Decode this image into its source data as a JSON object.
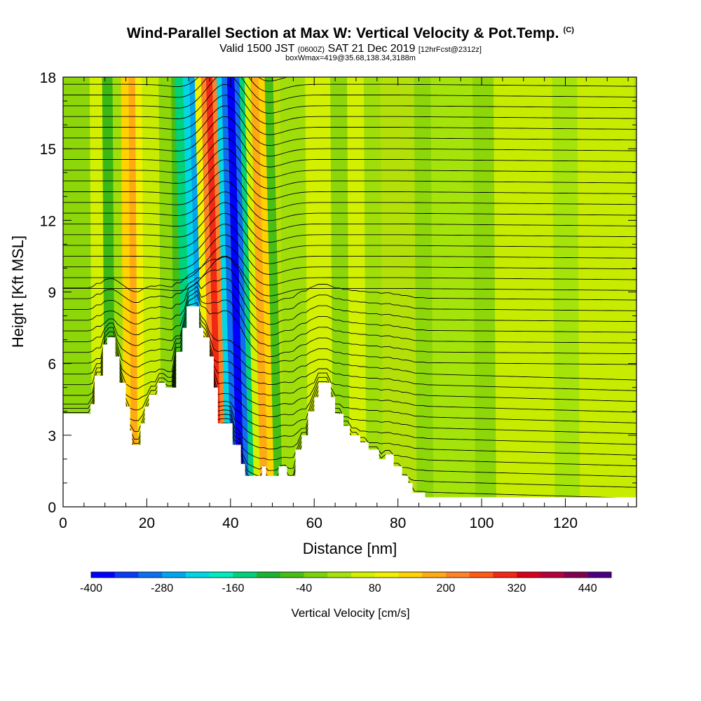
{
  "header": {
    "title": "Wind-Parallel Section at Max W: Vertical Velocity & Pot.Temp.",
    "copyright": "(C)",
    "valid_prefix": "Valid 1500 JST",
    "valid_utc": "(0600Z)",
    "valid_date": "SAT 21 Dec 2019",
    "forecast": "[12hrFcst@2312z]",
    "box_info": "boxWmax=419@35.68,138.34,3188m"
  },
  "chart_data": {
    "type": "heatmap",
    "title": "Wind-Parallel Section at Max W: Vertical Velocity & Pot.Temp.",
    "xlabel": "Distance [nm]",
    "ylabel": "Height [Kft MSL]",
    "xlim": [
      0,
      137
    ],
    "ylim": [
      0,
      18
    ],
    "x_ticks": [
      0,
      20,
      40,
      60,
      80,
      100,
      120
    ],
    "y_ticks": [
      0,
      3,
      6,
      9,
      12,
      15,
      18
    ],
    "colorbar": {
      "title": "Vertical Velocity [cm/s]",
      "range": [
        -400,
        480
      ],
      "tick_values": [
        -400,
        -280,
        -160,
        -40,
        80,
        200,
        320,
        440
      ],
      "tick_labels": [
        "-400",
        "-280",
        "-160",
        "-40",
        "80",
        "200",
        "320",
        "440"
      ],
      "colors": [
        "#0000ff",
        "#0a3cf5",
        "#0f6ef0",
        "#00a5f0",
        "#00d7e6",
        "#00ecc0",
        "#00d27a",
        "#19b430",
        "#46be14",
        "#7ad20a",
        "#a5e40a",
        "#d2f000",
        "#f0f000",
        "#ffd200",
        "#ffaa14",
        "#ff8228",
        "#ff5a14",
        "#f02814",
        "#d7001e",
        "#b4003c",
        "#820050",
        "#4b0082"
      ]
    },
    "terrain_kft": [
      [
        0,
        3.9
      ],
      [
        6.5,
        3.9
      ],
      [
        6.5,
        4.3
      ],
      [
        7.5,
        4.3
      ],
      [
        7.5,
        5.5
      ],
      [
        9.5,
        5.5
      ],
      [
        9.5,
        6.8
      ],
      [
        10.5,
        6.8
      ],
      [
        10.5,
        7.1
      ],
      [
        12.5,
        7.1
      ],
      [
        12.5,
        6.3
      ],
      [
        13.5,
        6.3
      ],
      [
        13.5,
        5.2
      ],
      [
        15,
        5.2
      ],
      [
        15,
        4.2
      ],
      [
        16,
        4.2
      ],
      [
        16,
        3.2
      ],
      [
        16.5,
        3.2
      ],
      [
        16.5,
        2.6
      ],
      [
        18.5,
        2.6
      ],
      [
        18.5,
        3.5
      ],
      [
        19.5,
        3.5
      ],
      [
        19.5,
        4.2
      ],
      [
        20.5,
        4.2
      ],
      [
        20.5,
        4.7
      ],
      [
        22.5,
        4.7
      ],
      [
        22.5,
        5.2
      ],
      [
        24.5,
        5.2
      ],
      [
        24.5,
        5.0
      ],
      [
        27,
        5.0
      ],
      [
        27,
        6.5
      ],
      [
        28.5,
        6.5
      ],
      [
        28.5,
        7.5
      ],
      [
        29.5,
        7.5
      ],
      [
        29.5,
        8.4
      ],
      [
        32.5,
        8.4
      ],
      [
        32.5,
        7.5
      ],
      [
        33.5,
        7.5
      ],
      [
        33.5,
        7.1
      ],
      [
        35,
        7.1
      ],
      [
        35,
        6.3
      ],
      [
        36,
        6.3
      ],
      [
        36,
        5.0
      ],
      [
        37,
        5.0
      ],
      [
        37,
        3.5
      ],
      [
        40.5,
        3.5
      ],
      [
        40.5,
        2.6
      ],
      [
        42.5,
        2.6
      ],
      [
        42.5,
        1.8
      ],
      [
        43.5,
        1.8
      ],
      [
        43.5,
        1.3
      ],
      [
        47.5,
        1.3
      ],
      [
        47.5,
        1.7
      ],
      [
        48.5,
        1.7
      ],
      [
        48.5,
        1.3
      ],
      [
        51.5,
        1.3
      ],
      [
        51.5,
        1.7
      ],
      [
        53.5,
        1.7
      ],
      [
        53.5,
        1.3
      ],
      [
        55.5,
        1.3
      ],
      [
        55.5,
        2.4
      ],
      [
        57,
        2.4
      ],
      [
        57,
        3.0
      ],
      [
        58.5,
        3.0
      ],
      [
        58.5,
        4.0
      ],
      [
        60,
        4.0
      ],
      [
        60,
        4.6
      ],
      [
        61,
        4.6
      ],
      [
        61,
        5.2
      ],
      [
        64,
        5.2
      ],
      [
        64,
        4.6
      ],
      [
        65,
        4.6
      ],
      [
        65,
        3.9
      ],
      [
        67,
        3.9
      ],
      [
        67,
        3.4
      ],
      [
        68.5,
        3.4
      ],
      [
        68.5,
        3.0
      ],
      [
        71,
        3.0
      ],
      [
        71,
        2.7
      ],
      [
        73,
        2.7
      ],
      [
        73,
        2.4
      ],
      [
        75.5,
        2.4
      ],
      [
        75.5,
        2.0
      ],
      [
        77,
        2.0
      ],
      [
        77,
        2.2
      ],
      [
        79,
        2.2
      ],
      [
        79,
        1.7
      ],
      [
        81,
        1.7
      ],
      [
        81,
        1.3
      ],
      [
        82.5,
        1.3
      ],
      [
        82.5,
        1.0
      ],
      [
        83.5,
        1.0
      ],
      [
        83.5,
        0.6
      ],
      [
        86.5,
        0.6
      ],
      [
        86.5,
        0.4
      ],
      [
        137,
        0.4
      ]
    ]
  }
}
